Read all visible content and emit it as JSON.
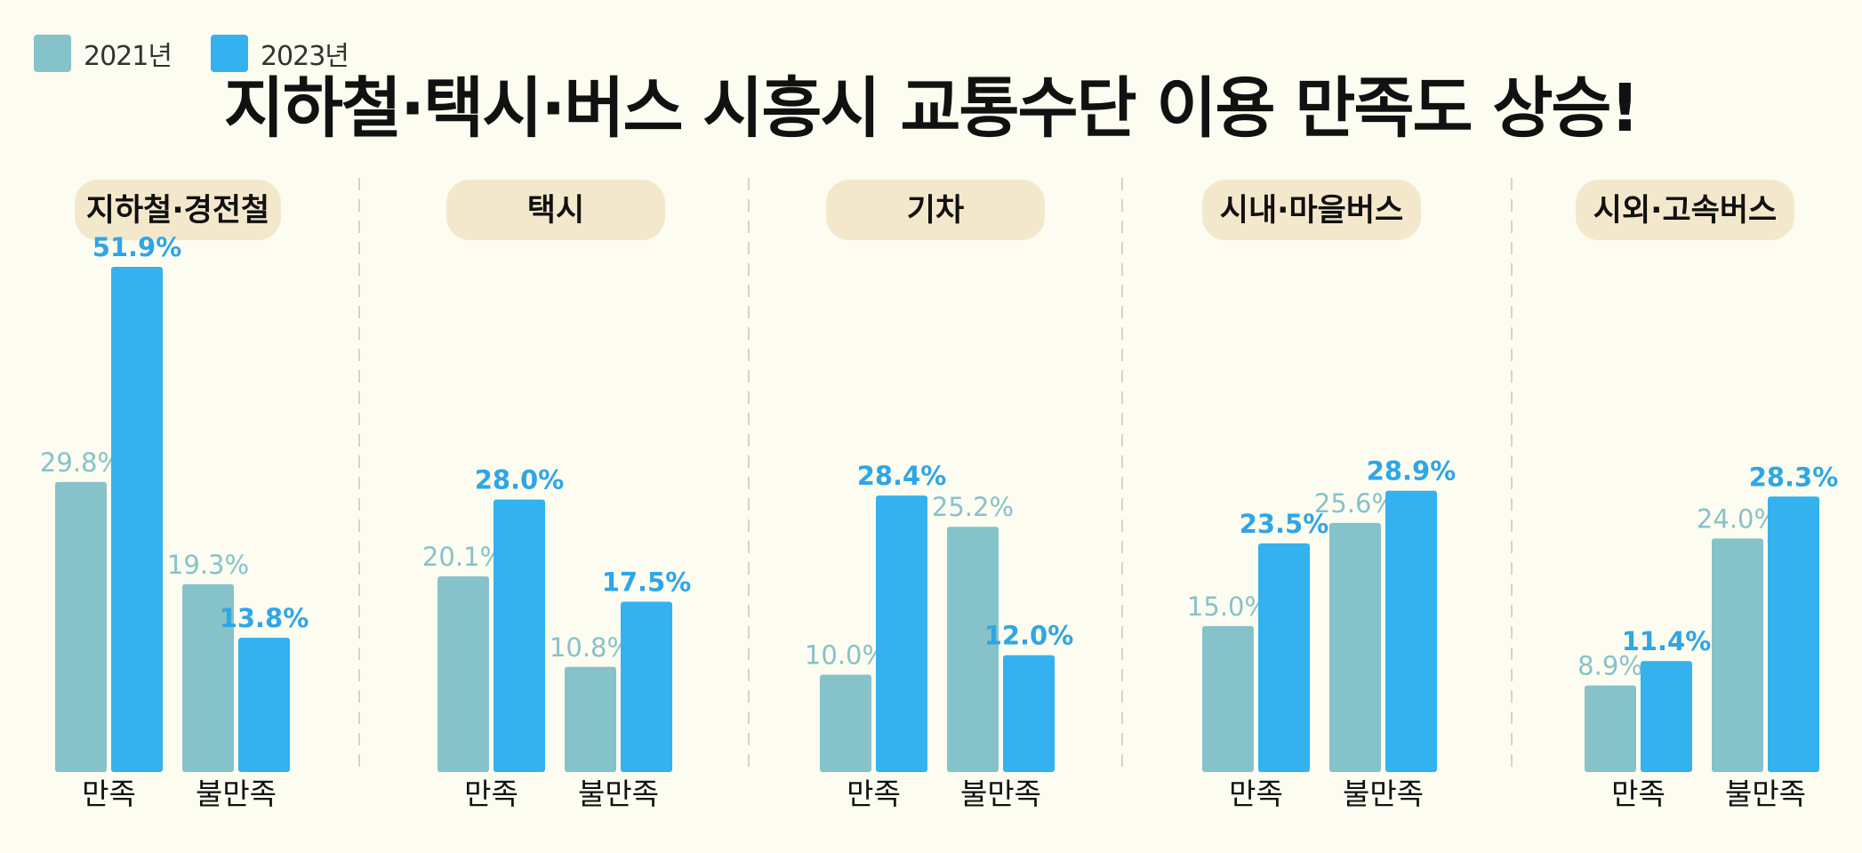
{
  "legend": {
    "series_2021": "2021년",
    "series_2023": "2023년"
  },
  "title": "지하철·택시·버스 시흥시 교통수단 이용 만족도 상승!",
  "colors": {
    "series_2021": "#86c2ca",
    "series_2023": "#33b2ef",
    "label_2021": "#86c2ca",
    "label_2023": "#2fa6e6",
    "background": "#fdfcf0",
    "panel_pill": "#f4e8cc"
  },
  "chart_data": {
    "type": "bar",
    "grid": false,
    "legend_position": "top-left",
    "value_suffix": "%",
    "series_names": [
      "2021년",
      "2023년"
    ],
    "categories": [
      "만족",
      "불만족"
    ],
    "ylim": [
      0,
      55
    ],
    "panels": [
      {
        "title": "지하철·경전철",
        "series": [
          {
            "name": "2021년",
            "values": [
              29.8,
              19.3
            ]
          },
          {
            "name": "2023년",
            "values": [
              51.9,
              13.8
            ]
          }
        ]
      },
      {
        "title": "택시",
        "series": [
          {
            "name": "2021년",
            "values": [
              20.1,
              10.8
            ]
          },
          {
            "name": "2023년",
            "values": [
              28.0,
              17.5
            ]
          }
        ]
      },
      {
        "title": "기차",
        "series": [
          {
            "name": "2021년",
            "values": [
              10.0,
              25.2
            ]
          },
          {
            "name": "2023년",
            "values": [
              28.4,
              12.0
            ]
          }
        ]
      },
      {
        "title": "시내·마을버스",
        "series": [
          {
            "name": "2021년",
            "values": [
              15.0,
              25.6
            ]
          },
          {
            "name": "2023년",
            "values": [
              23.5,
              28.9
            ]
          }
        ]
      },
      {
        "title": "시외·고속버스",
        "series": [
          {
            "name": "2021년",
            "values": [
              8.9,
              24.0
            ]
          },
          {
            "name": "2023년",
            "values": [
              11.4,
              28.3
            ]
          }
        ]
      }
    ]
  }
}
